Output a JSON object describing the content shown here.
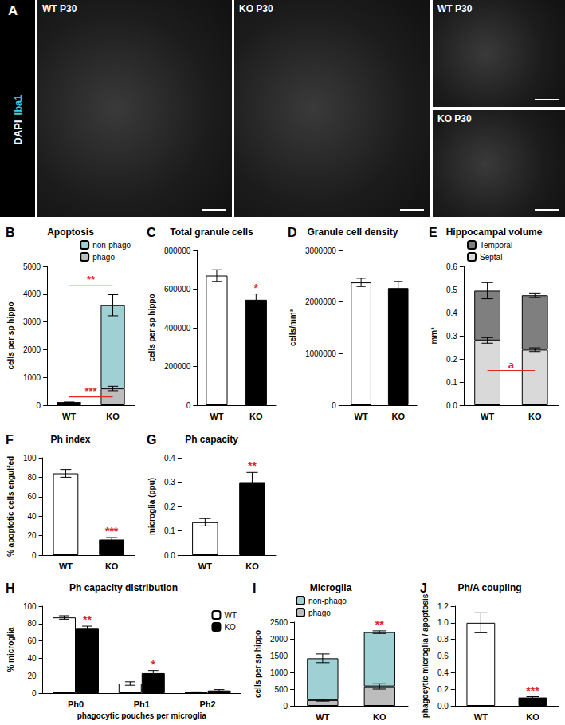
{
  "panel_a": {
    "panel": "A",
    "channels": [
      {
        "name": "DAPI",
        "color": "#ffffff"
      },
      {
        "name": "Iba1",
        "color": "#3fd0d4"
      }
    ],
    "images": [
      "WT P30",
      "KO P30",
      "WT P30",
      "KO P30"
    ]
  },
  "chart_data": [
    {
      "panel": "B",
      "type": "bar",
      "title": "Apoptosis",
      "stacked": true,
      "categories": [
        "WT",
        "KO"
      ],
      "ylabel": "cells per sp hippo",
      "ylim": [
        0,
        5000
      ],
      "yticks": [
        0,
        1000,
        2000,
        3000,
        4000,
        5000
      ],
      "legend": "top-right",
      "series": [
        {
          "name": "phago",
          "color": "#bdbdbd",
          "values": [
            85,
            600
          ],
          "errors": [
            10,
            80
          ]
        },
        {
          "name": "non-phago",
          "color": "#9fd0d3",
          "values": [
            15,
            3000
          ],
          "errors": [
            15,
            380
          ]
        }
      ],
      "brackets": [
        {
          "from": "WT",
          "to": "KO",
          "value": 4300,
          "label": "**"
        },
        {
          "from": "WT",
          "to": "KO",
          "value": 300,
          "label": "***"
        }
      ]
    },
    {
      "panel": "C",
      "type": "bar",
      "title": "Total granule cells",
      "categories": [
        "WT",
        "KO"
      ],
      "ylabel": "cells per sp hippo",
      "ylim": [
        0,
        800000
      ],
      "yticks": [
        0,
        200000,
        400000,
        600000,
        800000
      ],
      "values": [
        670000,
        545000
      ],
      "errors": [
        30000,
        30000
      ],
      "colors": [
        "#ffffff",
        "#000000"
      ],
      "significance": [
        null,
        "*"
      ]
    },
    {
      "panel": "D",
      "type": "bar",
      "title": "Granule cell density",
      "categories": [
        "WT",
        "KO"
      ],
      "ylabel": "cells/mm³",
      "ylim": [
        0,
        3000000
      ],
      "yticks": [
        0,
        1000000,
        2000000,
        3000000
      ],
      "values": [
        2380000,
        2270000
      ],
      "errors": [
        80000,
        130000
      ],
      "colors": [
        "#ffffff",
        "#000000"
      ]
    },
    {
      "panel": "E",
      "type": "bar",
      "title": "Hippocampal volume",
      "stacked": true,
      "categories": [
        "WT",
        "KO"
      ],
      "ylabel": "mm³",
      "ylim": [
        0,
        0.6
      ],
      "yticks": [
        {
          "value": 0,
          "label": "0.0"
        },
        0.1,
        0.2,
        0.3,
        0.4,
        0.5,
        0.6
      ],
      "legend": "top-left",
      "series": [
        {
          "name": "Septal",
          "color": "#d9d9d9",
          "values": [
            0.28,
            0.24
          ],
          "errors": [
            0.012,
            0.008
          ]
        },
        {
          "name": "Temporal",
          "color": "#7f7f7f",
          "values": [
            0.215,
            0.235
          ],
          "errors": [
            0.035,
            0.01
          ]
        }
      ],
      "brackets": [
        {
          "from": "WT",
          "to": "KO",
          "value": 0.15,
          "label": "a"
        }
      ]
    },
    {
      "panel": "F",
      "type": "bar",
      "title": "Ph index",
      "categories": [
        "WT",
        "KO"
      ],
      "ylabel": "% apoptotic cells engulfed",
      "ylim": [
        0,
        100
      ],
      "yticks": [
        0,
        20,
        40,
        60,
        80,
        100
      ],
      "values": [
        84,
        16
      ],
      "errors": [
        4,
        2
      ],
      "colors": [
        "#ffffff",
        "#000000"
      ],
      "significance": [
        null,
        "***"
      ]
    },
    {
      "panel": "G",
      "type": "bar",
      "title": "Ph capacity",
      "categories": [
        "WT",
        "KO"
      ],
      "ylabel": "microglia (ppu)",
      "ylim": [
        0,
        0.4
      ],
      "yticks": [
        {
          "value": 0,
          "label": "0.0"
        },
        0.1,
        0.2,
        0.3,
        0.4
      ],
      "values": [
        0.135,
        0.3
      ],
      "errors": [
        0.015,
        0.04
      ],
      "colors": [
        "#ffffff",
        "#000000"
      ],
      "significance": [
        null,
        "**"
      ]
    },
    {
      "panel": "H",
      "type": "bar",
      "title": "Ph capacity distribution",
      "categories": [
        "Ph0",
        "Ph1",
        "Ph2"
      ],
      "ylabel": "% microglia",
      "xlabel": "phagocytic pouches per microglia",
      "ylim": [
        0,
        100
      ],
      "yticks": [
        0,
        20,
        40,
        60,
        80,
        100
      ],
      "legend": "top-right",
      "series": [
        {
          "name": "WT",
          "color": "#ffffff",
          "values": [
            87,
            11,
            1
          ],
          "errors": [
            2,
            2,
            0.5
          ]
        },
        {
          "name": "KO",
          "color": "#000000",
          "values": [
            74,
            23,
            3
          ],
          "errors": [
            3,
            3,
            1
          ],
          "significance": [
            "**",
            "*",
            null
          ]
        }
      ]
    },
    {
      "panel": "I",
      "type": "bar",
      "title": "Microglia",
      "stacked": true,
      "categories": [
        "WT",
        "KO"
      ],
      "ylabel": "cells per sp hippo",
      "ylim": [
        0,
        2500
      ],
      "yticks": [
        0,
        500,
        1000,
        1500,
        2000,
        2500
      ],
      "legend": "top-left",
      "series": [
        {
          "name": "phago",
          "color": "#bdbdbd",
          "values": [
            170,
            580
          ],
          "errors": [
            30,
            80
          ]
        },
        {
          "name": "non-phago",
          "color": "#9fd0d3",
          "values": [
            1250,
            1620
          ],
          "errors": [
            130,
            40
          ],
          "significance": [
            null,
            "**"
          ]
        }
      ]
    },
    {
      "panel": "J",
      "type": "bar",
      "title": "Ph/A coupling",
      "categories": [
        "WT",
        "KO"
      ],
      "ylabel": "phagocytic microglia / apoptosis",
      "ylim": [
        0,
        1.2
      ],
      "yticks": [
        {
          "value": 0,
          "label": "0.0"
        },
        0.2,
        0.4,
        0.6,
        0.8,
        {
          "value": 1,
          "label": "1.0"
        },
        1.2
      ],
      "values": [
        1.0,
        0.1
      ],
      "errors": [
        0.12,
        0.01
      ],
      "colors": [
        "#ffffff",
        "#000000"
      ],
      "significance": [
        null,
        "***"
      ]
    }
  ]
}
